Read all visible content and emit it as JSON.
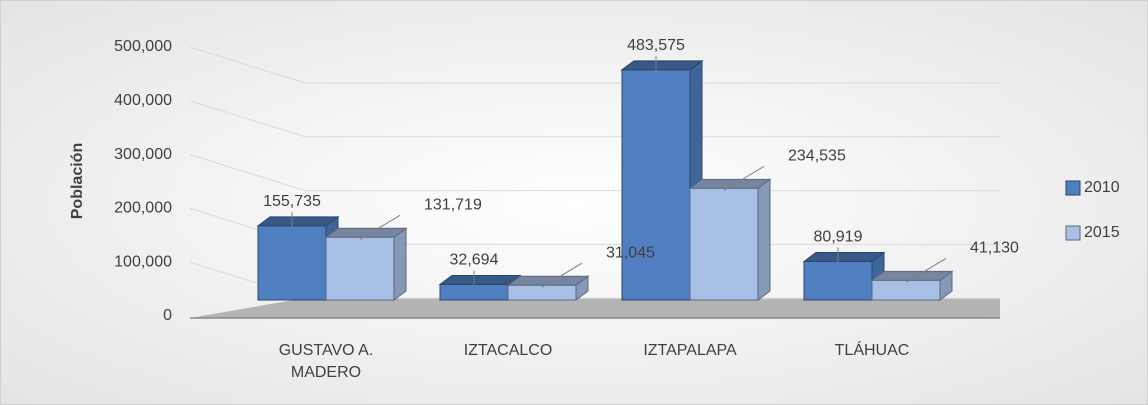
{
  "chart_data": {
    "type": "bar3d",
    "ylabel": "Población",
    "categories": [
      "GUSTAVO A. MADERO",
      "IZTACALCO",
      "IZTAPALAPA",
      "TLÁHUAC"
    ],
    "series": [
      {
        "name": "2010",
        "color": "#4f7fc0",
        "values": [
          155735,
          32694,
          483575,
          80919
        ],
        "value_labels": [
          "155,735",
          "32,694",
          "483,575",
          "80,919"
        ]
      },
      {
        "name": "2015",
        "color": "#a8bfe6",
        "values": [
          131719,
          31045,
          234535,
          41130
        ],
        "value_labels": [
          "131,719",
          "31,045",
          "234,535",
          "41,130"
        ]
      }
    ],
    "ylim": [
      0,
      500000
    ],
    "yticks": [
      0,
      {
        "value": 100000,
        "label": "100,000"
      },
      {
        "value": 200000,
        "label": "200,000"
      },
      {
        "value": 300000,
        "label": "300,000"
      },
      {
        "value": 400000,
        "label": "400,000"
      },
      {
        "value": 500000,
        "label": "500,000"
      }
    ],
    "grid": true,
    "legend": "right"
  }
}
